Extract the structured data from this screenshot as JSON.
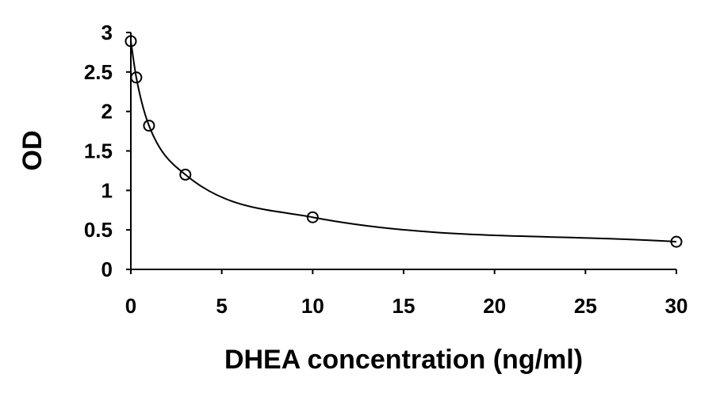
{
  "chart_data": {
    "type": "scatter",
    "title": "",
    "xlabel": "DHEA concentration (ng/ml)",
    "ylabel": "OD",
    "xlim": [
      0,
      30
    ],
    "ylim": [
      0,
      3
    ],
    "x_ticks": [
      0,
      5,
      10,
      15,
      20,
      25,
      30
    ],
    "y_ticks": [
      0,
      0.5,
      1,
      1.5,
      2,
      2.5,
      3
    ],
    "x_tick_labels": [
      "0",
      "5",
      "10",
      "15",
      "20",
      "25",
      "30"
    ],
    "y_tick_labels": [
      "0",
      "0.5",
      "1",
      "1.5",
      "2",
      "2.5",
      "3"
    ],
    "grid": false,
    "legend": "none",
    "series": [
      {
        "marker": "open-circle",
        "points": [
          {
            "x": 0,
            "y": 2.89
          },
          {
            "x": 0.3,
            "y": 2.43
          },
          {
            "x": 1,
            "y": 1.82
          },
          {
            "x": 3,
            "y": 1.2
          },
          {
            "x": 10,
            "y": 0.66
          },
          {
            "x": 30,
            "y": 0.35
          }
        ]
      }
    ],
    "trendline": {
      "points": [
        {
          "x": 0,
          "y": 2.89
        },
        {
          "x": 0.3,
          "y": 2.43
        },
        {
          "x": 1,
          "y": 1.82
        },
        {
          "x": 3,
          "y": 1.2
        },
        {
          "x": 10,
          "y": 0.66
        },
        {
          "x": 30,
          "y": 0.35
        }
      ]
    },
    "colors": {
      "axis": "#000000",
      "marker": "#000000",
      "line": "#000000"
    }
  }
}
